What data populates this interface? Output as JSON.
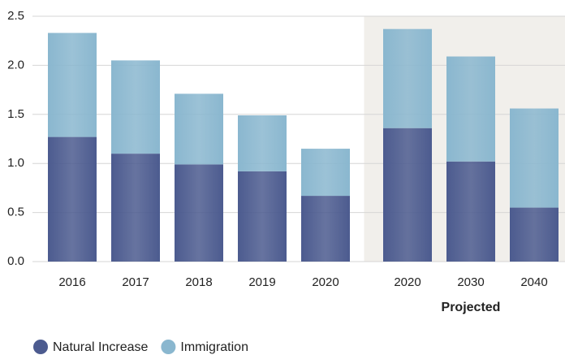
{
  "chart_data": {
    "type": "stacked_bar",
    "categories": [
      "2016",
      "2017",
      "2018",
      "2019",
      "2020",
      "2020",
      "2030",
      "2040"
    ],
    "series": [
      {
        "name": "Natural Increase",
        "color": "#4c5b8f",
        "values": [
          1.27,
          1.1,
          0.99,
          0.92,
          0.67,
          1.36,
          1.02,
          0.55
        ]
      },
      {
        "name": "Immigration",
        "color": "#8ab7cf",
        "values": [
          1.06,
          0.95,
          0.72,
          0.57,
          0.48,
          1.01,
          1.07,
          1.01
        ]
      }
    ],
    "ylim": [
      0,
      2.5
    ],
    "yticks": [
      {
        "value": 0,
        "label": "0.0"
      },
      0.5,
      {
        "value": 1,
        "label": "1.0"
      },
      1.5,
      {
        "value": 2,
        "label": "2.0"
      },
      2.5
    ],
    "grid": true,
    "shaded_region": {
      "label": "Projected",
      "start": 5,
      "end": 7,
      "color": "#f1efeb"
    },
    "legend": "bottom-left"
  }
}
